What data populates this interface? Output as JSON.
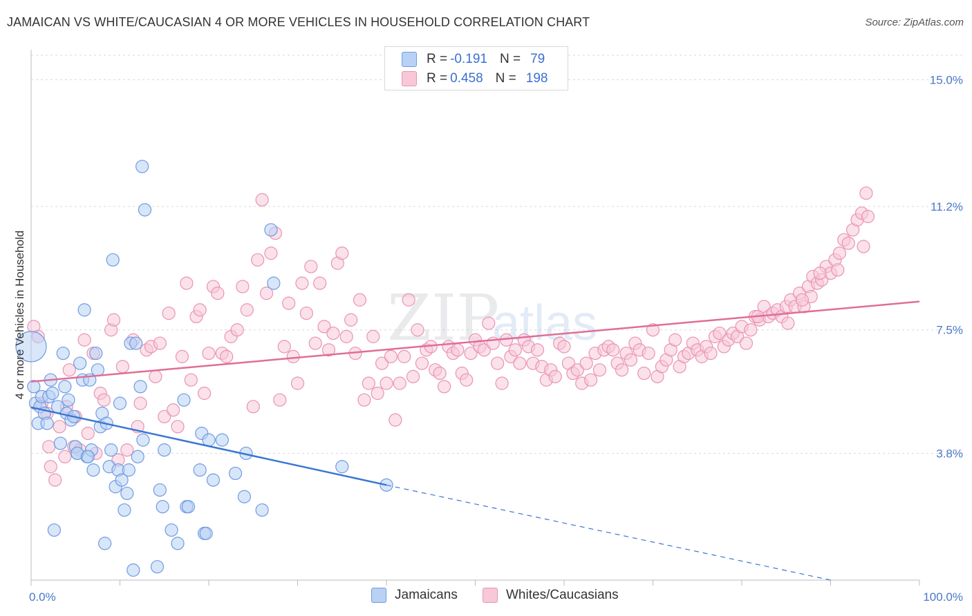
{
  "title": "JAMAICAN VS WHITE/CAUCASIAN 4 OR MORE VEHICLES IN HOUSEHOLD CORRELATION CHART",
  "source": "Source: ZipAtlas.com",
  "watermark": {
    "zip": "ZIP",
    "atlas": "atlas"
  },
  "legend": {
    "series1": {
      "r_label": "R =",
      "r_value": "-0.191",
      "n_label": "N =",
      "n_value": "79"
    },
    "series2": {
      "r_label": "R =",
      "r_value": "0.458",
      "n_label": "N =",
      "n_value": "198"
    }
  },
  "colors": {
    "blue_fill": "#b8d1f5",
    "blue_stroke": "#6f9be0",
    "blue_line": "#3a76d4",
    "pink_fill": "#f8c8d8",
    "pink_stroke": "#e993b2",
    "pink_line": "#e06d97",
    "grid": "#d9d9d9",
    "axis_text": "#4a78c8"
  },
  "chart_data": {
    "type": "scatter",
    "ylabel": "4 or more Vehicles in Household",
    "xlim": [
      0,
      100
    ],
    "ylim": [
      0,
      15.9
    ],
    "x_tick_labels": [
      {
        "value": 0,
        "label": "0.0%"
      },
      {
        "value": 100,
        "label": "100.0%"
      }
    ],
    "y_ticks": [
      {
        "value": 3.8,
        "label": "3.8%"
      },
      {
        "value": 7.5,
        "label": "7.5%"
      },
      {
        "value": 11.2,
        "label": "11.2%"
      },
      {
        "value": 15.0,
        "label": "15.0%"
      }
    ],
    "grid": "horizontal dashed",
    "series": [
      {
        "name": "Jamaicans",
        "trend": {
          "x0": 0,
          "y0": 5.18,
          "x1": 40,
          "y1": 2.85,
          "dash_to_x": 90,
          "dash_to_y": 0
        },
        "points": [
          [
            0,
            7.0
          ],
          [
            0.3,
            5.8
          ],
          [
            0.5,
            5.3
          ],
          [
            0.8,
            4.7
          ],
          [
            1,
            5.2
          ],
          [
            1.2,
            5.5
          ],
          [
            1.5,
            5.0
          ],
          [
            1.8,
            4.7
          ],
          [
            2,
            5.5
          ],
          [
            2.2,
            6.0
          ],
          [
            2.4,
            5.6
          ],
          [
            2.6,
            1.5
          ],
          [
            3,
            5.2
          ],
          [
            3.3,
            4.1
          ],
          [
            3.6,
            6.8
          ],
          [
            3.8,
            5.8
          ],
          [
            4,
            5.0
          ],
          [
            4.2,
            5.4
          ],
          [
            4.5,
            4.8
          ],
          [
            4.8,
            4.9
          ],
          [
            5,
            4.0
          ],
          [
            5.2,
            3.8
          ],
          [
            5.5,
            6.5
          ],
          [
            5.8,
            6.0
          ],
          [
            6,
            8.1
          ],
          [
            6.3,
            3.7
          ],
          [
            6.6,
            6.0
          ],
          [
            6.8,
            3.9
          ],
          [
            7,
            3.3
          ],
          [
            7.3,
            6.8
          ],
          [
            7.5,
            6.3
          ],
          [
            7.8,
            4.6
          ],
          [
            8,
            5.0
          ],
          [
            8.3,
            1.1
          ],
          [
            8.5,
            4.7
          ],
          [
            8.8,
            3.4
          ],
          [
            9,
            3.9
          ],
          [
            9.2,
            9.6
          ],
          [
            9.5,
            2.8
          ],
          [
            9.8,
            3.3
          ],
          [
            10,
            5.3
          ],
          [
            10.2,
            3.0
          ],
          [
            10.5,
            2.1
          ],
          [
            10.8,
            2.6
          ],
          [
            11,
            3.3
          ],
          [
            11.2,
            7.1
          ],
          [
            11.5,
            0.3
          ],
          [
            11.8,
            7.1
          ],
          [
            12,
            3.7
          ],
          [
            12.3,
            5.8
          ],
          [
            12.5,
            12.4
          ],
          [
            12.6,
            4.2
          ],
          [
            12.8,
            11.1
          ],
          [
            14.2,
            0.4
          ],
          [
            14.5,
            2.7
          ],
          [
            14.8,
            2.2
          ],
          [
            15,
            3.9
          ],
          [
            15.8,
            1.5
          ],
          [
            16.5,
            1.1
          ],
          [
            17.2,
            5.4
          ],
          [
            17.5,
            2.2
          ],
          [
            17.7,
            2.2
          ],
          [
            19,
            3.3
          ],
          [
            19.2,
            4.4
          ],
          [
            19.5,
            1.4
          ],
          [
            19.7,
            1.4
          ],
          [
            20,
            4.2
          ],
          [
            20.5,
            3.0
          ],
          [
            21.5,
            4.2
          ],
          [
            23,
            3.2
          ],
          [
            24,
            2.5
          ],
          [
            24.2,
            3.8
          ],
          [
            26,
            2.1
          ],
          [
            27,
            10.5
          ],
          [
            27.3,
            8.9
          ],
          [
            35,
            3.4
          ],
          [
            40,
            2.85
          ],
          [
            5.2,
            3.8
          ],
          [
            6.4,
            3.7
          ]
        ]
      },
      {
        "name": "Whites/Caucasians",
        "trend": {
          "x0": 0,
          "y0": 5.95,
          "x1": 100,
          "y1": 8.35
        },
        "points": [
          [
            0.3,
            7.6
          ],
          [
            0.8,
            7.3
          ],
          [
            1.2,
            5.3
          ],
          [
            1.8,
            5.0
          ],
          [
            2,
            4.0
          ],
          [
            2.2,
            3.4
          ],
          [
            2.7,
            3.0
          ],
          [
            3.2,
            4.6
          ],
          [
            3.8,
            3.7
          ],
          [
            4,
            5.2
          ],
          [
            4.3,
            6.3
          ],
          [
            4.8,
            4.0
          ],
          [
            5,
            4.9
          ],
          [
            5.5,
            3.9
          ],
          [
            6,
            7.2
          ],
          [
            6.4,
            4.4
          ],
          [
            7,
            6.8
          ],
          [
            7.3,
            3.8
          ],
          [
            7.8,
            5.6
          ],
          [
            8.2,
            5.4
          ],
          [
            9,
            7.5
          ],
          [
            9.3,
            7.8
          ],
          [
            9.8,
            3.6
          ],
          [
            10.3,
            6.4
          ],
          [
            10.8,
            3.9
          ],
          [
            11.5,
            7.2
          ],
          [
            12,
            4.6
          ],
          [
            12.3,
            5.3
          ],
          [
            13,
            6.9
          ],
          [
            13.5,
            7.0
          ],
          [
            14,
            6.1
          ],
          [
            14.5,
            7.1
          ],
          [
            15,
            4.9
          ],
          [
            15.5,
            8.0
          ],
          [
            16,
            5.1
          ],
          [
            16.5,
            4.6
          ],
          [
            17,
            6.7
          ],
          [
            17.5,
            8.9
          ],
          [
            18,
            6.0
          ],
          [
            18.6,
            7.9
          ],
          [
            19,
            8.1
          ],
          [
            19.5,
            5.6
          ],
          [
            20,
            6.8
          ],
          [
            20.5,
            8.8
          ],
          [
            21,
            8.6
          ],
          [
            21.5,
            6.8
          ],
          [
            22,
            6.7
          ],
          [
            22.5,
            7.3
          ],
          [
            23.2,
            7.5
          ],
          [
            23.8,
            8.8
          ],
          [
            24.3,
            8.1
          ],
          [
            25,
            5.2
          ],
          [
            25.5,
            9.6
          ],
          [
            26,
            11.4
          ],
          [
            26.5,
            8.6
          ],
          [
            27,
            9.8
          ],
          [
            27.5,
            10.4
          ],
          [
            28,
            5.4
          ],
          [
            28.5,
            7.0
          ],
          [
            29,
            8.3
          ],
          [
            29.5,
            6.7
          ],
          [
            30,
            5.9
          ],
          [
            30.5,
            8.9
          ],
          [
            31,
            8.0
          ],
          [
            31.5,
            9.4
          ],
          [
            32,
            7.1
          ],
          [
            32.5,
            8.9
          ],
          [
            33,
            7.6
          ],
          [
            33.5,
            6.9
          ],
          [
            34,
            7.4
          ],
          [
            34.5,
            9.5
          ],
          [
            35,
            9.8
          ],
          [
            35.5,
            7.3
          ],
          [
            36,
            7.8
          ],
          [
            36.5,
            6.8
          ],
          [
            37,
            8.4
          ],
          [
            37.5,
            5.4
          ],
          [
            38,
            5.9
          ],
          [
            38.5,
            7.3
          ],
          [
            39,
            5.6
          ],
          [
            39.5,
            6.5
          ],
          [
            40,
            5.9
          ],
          [
            40.5,
            6.7
          ],
          [
            41,
            4.8
          ],
          [
            41.5,
            5.9
          ],
          [
            42,
            6.7
          ],
          [
            42.5,
            8.4
          ],
          [
            43,
            6.1
          ],
          [
            43.5,
            7.5
          ],
          [
            44,
            6.5
          ],
          [
            44.5,
            6.9
          ],
          [
            45,
            7.0
          ],
          [
            45.5,
            6.3
          ],
          [
            46,
            6.2
          ],
          [
            46.5,
            5.8
          ],
          [
            47,
            7.0
          ],
          [
            47.5,
            6.8
          ],
          [
            48,
            6.9
          ],
          [
            48.5,
            6.2
          ],
          [
            49,
            6.0
          ],
          [
            49.5,
            6.8
          ],
          [
            50,
            7.2
          ],
          [
            50.5,
            7.0
          ],
          [
            51,
            6.9
          ],
          [
            51.5,
            7.7
          ],
          [
            52,
            7.1
          ],
          [
            52.5,
            6.5
          ],
          [
            53,
            5.9
          ],
          [
            53.5,
            7.2
          ],
          [
            54,
            6.7
          ],
          [
            54.5,
            6.9
          ],
          [
            55,
            6.5
          ],
          [
            55.5,
            7.2
          ],
          [
            56,
            7.0
          ],
          [
            56.5,
            6.5
          ],
          [
            57,
            6.9
          ],
          [
            57.5,
            6.4
          ],
          [
            58,
            6.0
          ],
          [
            58.5,
            6.3
          ],
          [
            59,
            6.1
          ],
          [
            59.5,
            7.1
          ],
          [
            60,
            7.0
          ],
          [
            60.5,
            6.5
          ],
          [
            61,
            6.2
          ],
          [
            61.5,
            6.3
          ],
          [
            62,
            5.9
          ],
          [
            62.5,
            6.5
          ],
          [
            63,
            6.0
          ],
          [
            63.5,
            6.8
          ],
          [
            64,
            6.3
          ],
          [
            64.5,
            6.9
          ],
          [
            65,
            7.0
          ],
          [
            65.5,
            6.9
          ],
          [
            66,
            6.5
          ],
          [
            66.5,
            6.3
          ],
          [
            67,
            6.8
          ],
          [
            67.5,
            6.6
          ],
          [
            68,
            7.1
          ],
          [
            68.5,
            6.9
          ],
          [
            69,
            6.2
          ],
          [
            69.5,
            6.8
          ],
          [
            70,
            7.5
          ],
          [
            70.5,
            6.1
          ],
          [
            71,
            6.4
          ],
          [
            71.5,
            6.6
          ],
          [
            72,
            6.9
          ],
          [
            72.5,
            7.2
          ],
          [
            73,
            6.4
          ],
          [
            73.5,
            6.7
          ],
          [
            74,
            6.8
          ],
          [
            74.5,
            7.1
          ],
          [
            75,
            6.9
          ],
          [
            75.5,
            6.7
          ],
          [
            76,
            7.0
          ],
          [
            76.5,
            6.8
          ],
          [
            77,
            7.3
          ],
          [
            77.5,
            7.4
          ],
          [
            78,
            7.0
          ],
          [
            78.5,
            7.2
          ],
          [
            79,
            7.4
          ],
          [
            79.5,
            7.3
          ],
          [
            80,
            7.6
          ],
          [
            80.5,
            7.1
          ],
          [
            81,
            7.5
          ],
          [
            81.5,
            7.9
          ],
          [
            82,
            7.8
          ],
          [
            82.5,
            8.2
          ],
          [
            83,
            7.9
          ],
          [
            83.5,
            8.0
          ],
          [
            84,
            8.1
          ],
          [
            84.5,
            7.9
          ],
          [
            85,
            8.2
          ],
          [
            85.5,
            8.4
          ],
          [
            86,
            8.2
          ],
          [
            86.5,
            8.6
          ],
          [
            87,
            8.2
          ],
          [
            87.5,
            8.8
          ],
          [
            88,
            9.1
          ],
          [
            88.5,
            8.9
          ],
          [
            89,
            9.0
          ],
          [
            89.5,
            9.4
          ],
          [
            90,
            9.2
          ],
          [
            90.5,
            9.6
          ],
          [
            91,
            9.8
          ],
          [
            91.5,
            10.2
          ],
          [
            92,
            10.1
          ],
          [
            92.5,
            10.5
          ],
          [
            93,
            10.8
          ],
          [
            93.5,
            11.0
          ],
          [
            94,
            11.6
          ],
          [
            94.2,
            10.9
          ],
          [
            93.7,
            10.0
          ],
          [
            90.8,
            9.3
          ],
          [
            88.8,
            9.2
          ],
          [
            87.8,
            8.5
          ],
          [
            86.8,
            8.4
          ],
          [
            85.2,
            7.7
          ],
          [
            81.8,
            7.9
          ]
        ]
      }
    ]
  }
}
